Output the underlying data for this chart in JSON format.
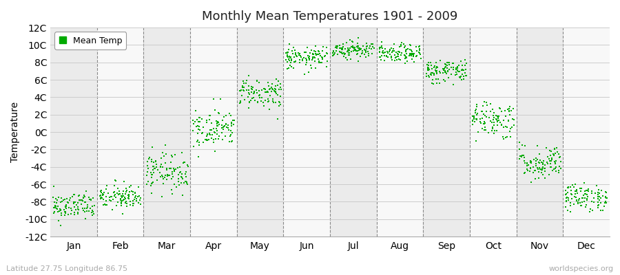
{
  "title": "Monthly Mean Temperatures 1901 - 2009",
  "ylabel": "Temperature",
  "subtitle": "Latitude 27.75 Longitude 86.75",
  "watermark": "worldspecies.org",
  "legend_label": "Mean Temp",
  "ylim": [
    -12,
    12
  ],
  "ytick_labels": [
    "12C",
    "10C",
    "8C",
    "6C",
    "4C",
    "2C",
    "0C",
    "-2C",
    "-4C",
    "-6C",
    "-8C",
    "-10C",
    "-12C"
  ],
  "ytick_values": [
    12,
    10,
    8,
    6,
    4,
    2,
    0,
    -2,
    -4,
    -6,
    -8,
    -10,
    -12
  ],
  "months": [
    "Jan",
    "Feb",
    "Mar",
    "Apr",
    "May",
    "Jun",
    "Jul",
    "Aug",
    "Sep",
    "Oct",
    "Nov",
    "Dec"
  ],
  "dot_color": "#00AA00",
  "dot_size": 3,
  "background_color": "#ffffff",
  "plot_bg_color_even": "#ebebeb",
  "plot_bg_color_odd": "#f8f8f8",
  "monthly_means": [
    -8.5,
    -7.5,
    -4.5,
    0.5,
    4.5,
    8.5,
    9.5,
    9.0,
    7.0,
    1.5,
    -3.5,
    -7.5
  ],
  "monthly_spread": [
    0.6,
    0.7,
    1.0,
    1.0,
    0.8,
    0.6,
    0.5,
    0.5,
    0.7,
    1.0,
    0.9,
    0.7
  ],
  "monthly_trend": [
    0.015,
    0.01,
    0.012,
    0.015,
    0.012,
    0.005,
    0.003,
    0.003,
    0.005,
    0.01,
    0.012,
    0.01
  ],
  "n_years": 109,
  "seed": 42,
  "fig_width": 9.0,
  "fig_height": 4.0,
  "dpi": 100
}
